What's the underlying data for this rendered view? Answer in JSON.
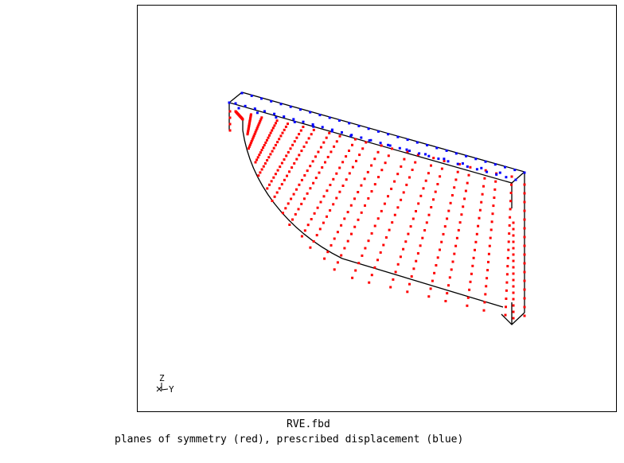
{
  "viewer": {
    "filename": "RVE.fbd",
    "description": "planes of symmetry (red), prescribed displacement (blue)",
    "triad": {
      "z_label": "Z",
      "y_label": "Y",
      "x_label": "X"
    },
    "colors": {
      "background": "#ffffff",
      "frame": "#000000",
      "edges": "#000000",
      "symmetry_nodes": "#ff0000",
      "displacement_nodes": "#0000ff"
    }
  }
}
